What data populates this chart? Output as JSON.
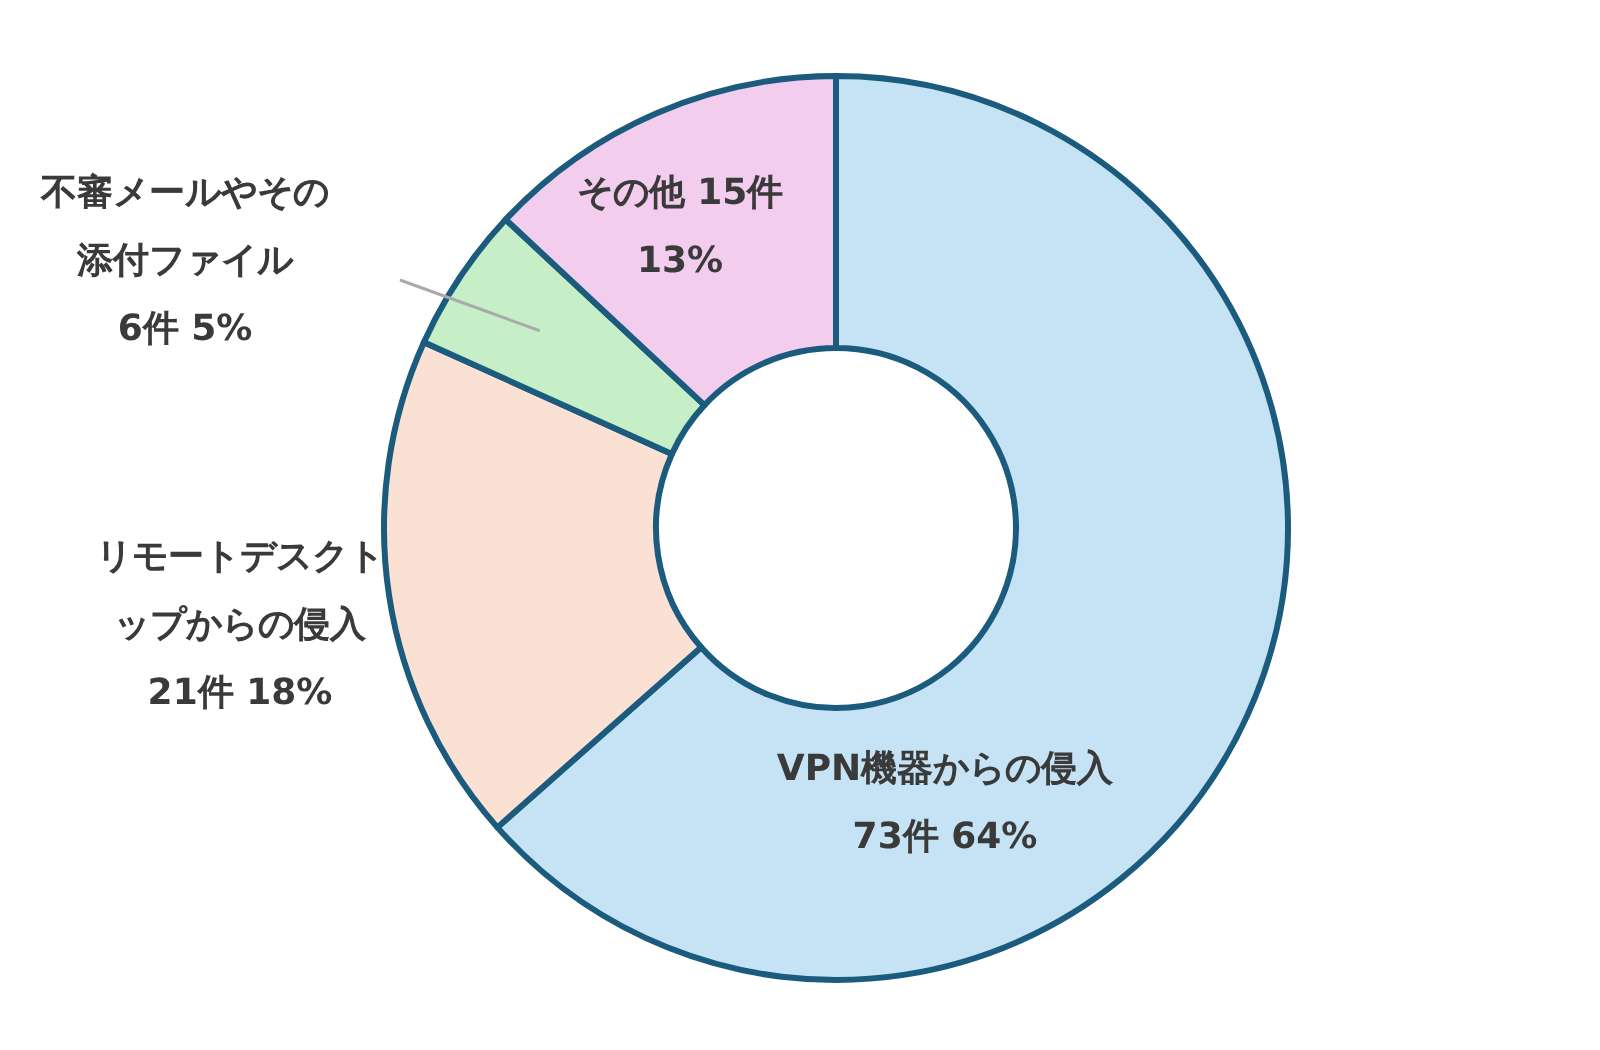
{
  "chart_data": {
    "type": "donut",
    "categories": [
      "VPN機器からの侵入",
      "リモートデスクトップからの侵入",
      "不審メールやその添付ファイル",
      "その他"
    ],
    "values": [
      73,
      21,
      6,
      15
    ],
    "colors": [
      "#c5e3f4",
      "#fbe1d4",
      "#c6efc8",
      "#f2cdee"
    ],
    "value_labels": [
      "73件 64%",
      "21件 18%",
      "6件 5%",
      "15件 13%"
    ]
  }
}
